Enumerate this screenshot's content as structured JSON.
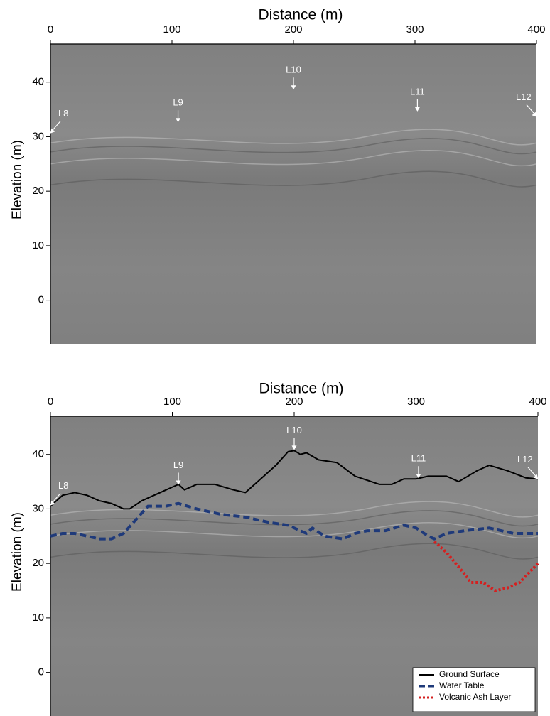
{
  "chart_data": [
    {
      "type": "line",
      "title": "Distance (m)",
      "y_label": "Elevation (m)",
      "xlim": [
        0,
        400
      ],
      "xticks": [
        0,
        100,
        200,
        300,
        400
      ],
      "ylim": [
        -8,
        47
      ],
      "yticks": [
        0,
        10,
        20,
        30,
        40
      ],
      "annotations": [
        {
          "text": "L8",
          "x": 0,
          "y": 30.5
        },
        {
          "text": "L9",
          "x": 105,
          "y": 32.5
        },
        {
          "text": "L10",
          "x": 200,
          "y": 38.5
        },
        {
          "text": "L11",
          "x": 302,
          "y": 34.5
        },
        {
          "text": "L12",
          "x": 400,
          "y": 33.5
        }
      ]
    },
    {
      "type": "line",
      "title": "Distance (m)",
      "y_label": "Elevation (m)",
      "xlim": [
        0,
        400
      ],
      "xticks": [
        0,
        100,
        200,
        300,
        400
      ],
      "ylim": [
        -8,
        47
      ],
      "yticks": [
        0,
        10,
        20,
        30,
        40
      ],
      "legend": "lower right",
      "annotations": [
        {
          "text": "L8",
          "x": 0,
          "y": 30.5
        },
        {
          "text": "L9",
          "x": 105,
          "y": 34.3
        },
        {
          "text": "L10",
          "x": 200,
          "y": 40.7
        },
        {
          "text": "L11",
          "x": 302,
          "y": 35.5
        },
        {
          "text": "L12",
          "x": 400,
          "y": 35.3
        }
      ],
      "series": [
        {
          "name": "Ground Surface",
          "color": "#000000",
          "dash": "solid",
          "x": [
            0,
            10,
            20,
            30,
            40,
            50,
            60,
            65,
            75,
            90,
            100,
            105,
            110,
            120,
            135,
            150,
            160,
            170,
            185,
            195,
            200,
            205,
            210,
            220,
            235,
            250,
            270,
            280,
            290,
            300,
            310,
            325,
            335,
            350,
            360,
            375,
            390,
            400
          ],
          "values": [
            30.5,
            32.5,
            33,
            32.5,
            31.5,
            31,
            30,
            30,
            31.5,
            33,
            34,
            34.5,
            33.5,
            34.5,
            34.5,
            33.5,
            33,
            35,
            38,
            40.5,
            40.7,
            40,
            40.3,
            39,
            38.5,
            36,
            34.5,
            34.5,
            35.5,
            35.5,
            36,
            36,
            35,
            37,
            38,
            37,
            35.7,
            35.5
          ]
        },
        {
          "name": "Water Table",
          "color": "#1f3a7a",
          "dash": "dashed",
          "x": [
            0,
            10,
            20,
            30,
            40,
            50,
            60,
            70,
            80,
            95,
            105,
            120,
            140,
            160,
            180,
            195,
            205,
            210,
            215,
            225,
            240,
            250,
            260,
            275,
            290,
            300,
            310,
            315,
            325,
            340,
            360,
            380,
            400
          ],
          "values": [
            25,
            25.5,
            25.5,
            25,
            24.5,
            24.5,
            25.5,
            28,
            30.5,
            30.5,
            31,
            30,
            29,
            28.5,
            27.5,
            27,
            26,
            25.5,
            26.5,
            25,
            24.5,
            25.5,
            26,
            26,
            27,
            26.5,
            25,
            24.5,
            25.5,
            26,
            26.5,
            25.5,
            25.5
          ]
        },
        {
          "name": "Volcanic Ash Layer",
          "color": "#d42020",
          "dash": "dotted",
          "x": [
            315,
            325,
            340,
            345,
            355,
            365,
            375,
            385,
            400
          ],
          "values": [
            24,
            22,
            18,
            16.5,
            16.5,
            15,
            15.5,
            16.5,
            20
          ]
        }
      ]
    }
  ]
}
